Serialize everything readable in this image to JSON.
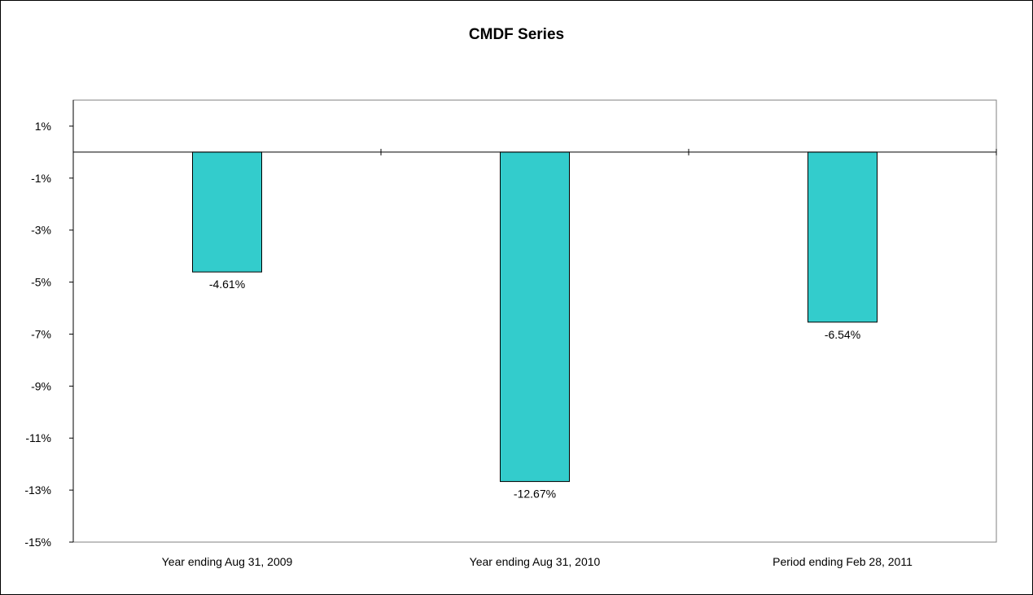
{
  "chart_data": {
    "type": "bar",
    "title": "CMDF Series",
    "xlabel": "",
    "ylabel": "",
    "categories": [
      "Year ending Aug 31, 2009",
      "Year ending Aug 31, 2010",
      "Period ending Feb 28, 2011"
    ],
    "values": [
      -4.61,
      -12.67,
      -6.54
    ],
    "data_labels": [
      "-4.61%",
      "-12.67%",
      "-6.54%"
    ],
    "ylim": [
      -15,
      2
    ],
    "yticks": [
      1,
      -1,
      -3,
      -5,
      -7,
      -9,
      -11,
      -13,
      -15
    ],
    "ytick_labels": [
      "1%",
      "-1%",
      "-3%",
      "-5%",
      "-7%",
      "-9%",
      "-11%",
      "-13%",
      "-15%"
    ],
    "grid": false,
    "legend": "none",
    "bar_color": "#33CCCC",
    "bar_border_color": "#000000"
  }
}
